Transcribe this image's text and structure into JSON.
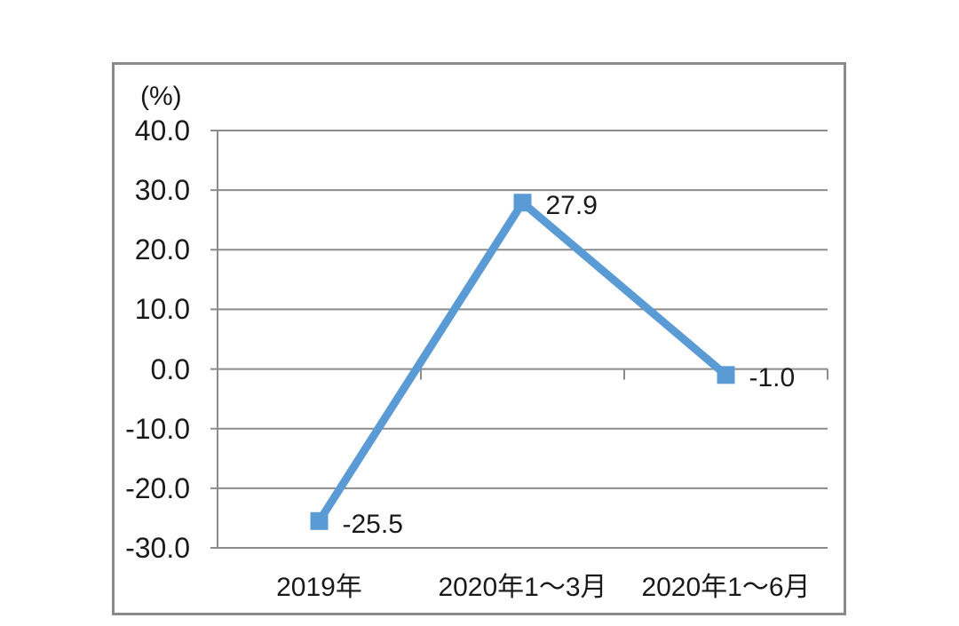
{
  "chart_data": {
    "type": "line",
    "title": "",
    "unit_label": "(%)",
    "categories": [
      "2019年",
      "2020年1～3月",
      "2020年1～6月"
    ],
    "series": [
      {
        "name": "growth-rate",
        "values": [
          -25.5,
          27.9,
          -1.0
        ],
        "data_labels": [
          "-25.5",
          "27.9",
          "-1.0"
        ],
        "color": "#5B9BD5",
        "marker": "square"
      }
    ],
    "ylim": [
      -30,
      40
    ],
    "ytick_step": 10,
    "ytick_labels": [
      "40.0",
      "30.0",
      "20.0",
      "10.0",
      "0.0",
      "-10.0",
      "-20.0",
      "-30.0"
    ],
    "xlabel": "",
    "ylabel": "(%)",
    "grid": "horizontal",
    "legend": "none",
    "axis_color": "#8C8C8C",
    "text_color": "#1A1A1A",
    "frame_color": "#8A8A8A"
  }
}
